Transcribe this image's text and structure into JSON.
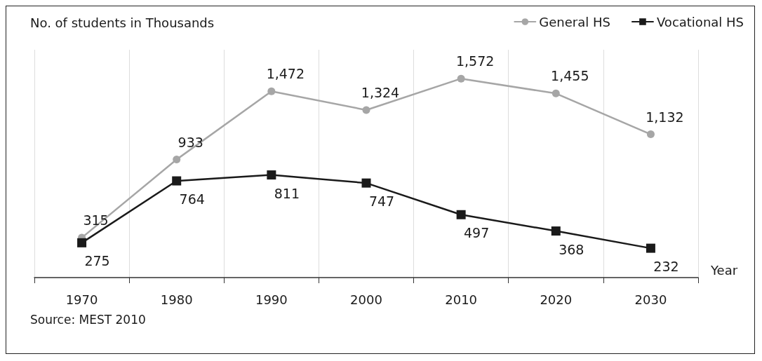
{
  "chart_data": {
    "type": "line",
    "ylabel": "No. of students in Thousands",
    "xlabel": "Year",
    "categories": [
      "1970",
      "1980",
      "1990",
      "2000",
      "2010",
      "2020",
      "2030"
    ],
    "series": [
      {
        "name": "General HS",
        "color": "#a6a6a6",
        "marker": "circle",
        "values": [
          315,
          933,
          1472,
          1324,
          1572,
          1455,
          1132
        ],
        "value_labels": [
          "315",
          "933",
          "1,472",
          "1,324",
          "1,572",
          "1,455",
          "1,132"
        ]
      },
      {
        "name": "Vocational HS",
        "color": "#1a1a1a",
        "marker": "square",
        "values": [
          275,
          764,
          811,
          747,
          497,
          368,
          232
        ],
        "value_labels": [
          "275",
          "764",
          "811",
          "747",
          "497",
          "368",
          "232"
        ]
      }
    ],
    "grid": "x",
    "legend": "top right",
    "line_style": "solid",
    "annotations": [
      "Source: MEST 2010"
    ]
  }
}
